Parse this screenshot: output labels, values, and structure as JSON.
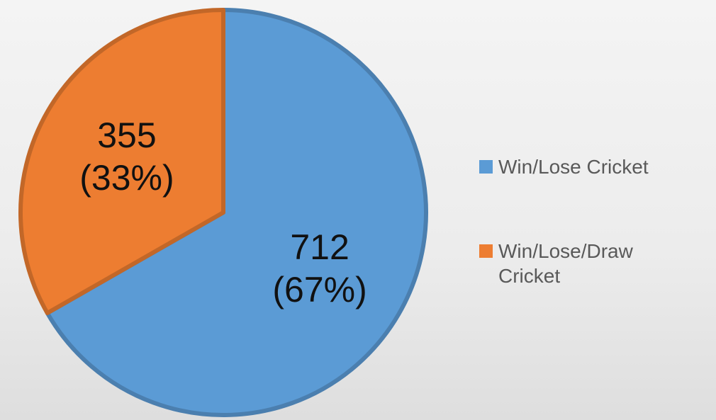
{
  "chart_data": {
    "type": "pie",
    "categories": [
      "Win/Lose Cricket",
      "Win/Lose/Draw Cricket"
    ],
    "values": [
      712,
      355
    ],
    "value_labels": [
      "712 (67%)",
      "355 (33%)"
    ],
    "colors": [
      "#5b9bd5",
      "#ed7d31"
    ],
    "legend": "right"
  }
}
